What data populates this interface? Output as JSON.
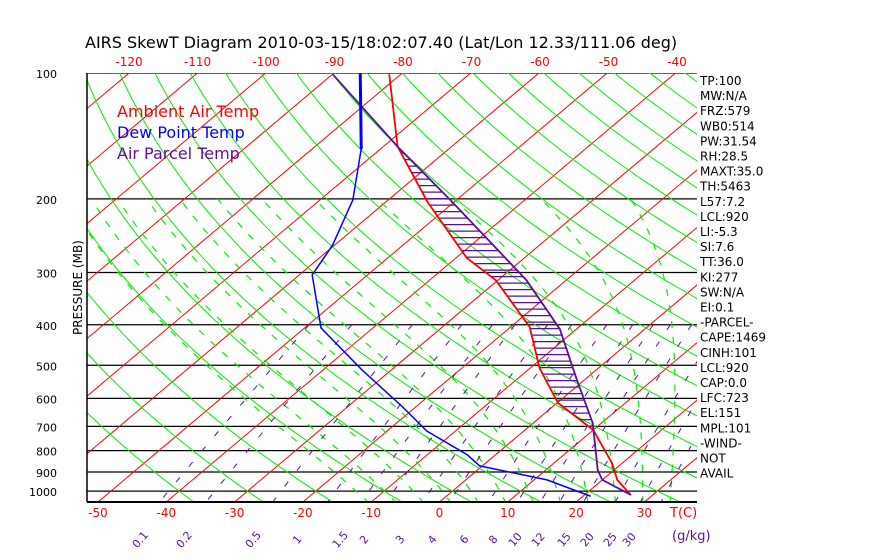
{
  "chart_data": {
    "type": "line",
    "subtype": "skew-t log-p",
    "title": "AIRS SkewT Diagram 2010-03-15/18:02:07.40 (Lat/Lon 12.33/111.06 deg)",
    "ylabel": "PRESSURE (MB)",
    "xlabel": "T(C)",
    "mixing_ratio_label": "(g/kg)",
    "ylim": [
      1060,
      100
    ],
    "pressure_ticks": [
      100,
      200,
      300,
      400,
      500,
      600,
      700,
      800,
      900,
      1000
    ],
    "top_temp_ticks": [
      -120,
      -110,
      -100,
      -90,
      -80,
      -70,
      -60,
      -50,
      -40
    ],
    "bottom_temp_ticks": [
      -50,
      -40,
      -30,
      -20,
      -10,
      0,
      10,
      20,
      30
    ],
    "mixing_ratio_ticks": [
      "0.1",
      "0.2",
      "0.5",
      "1",
      "1.5",
      "2",
      "3",
      "4",
      "6",
      "8",
      "10",
      "12",
      "15",
      "20",
      "25",
      "30"
    ],
    "legend": [
      {
        "label": "Ambient Air Temp",
        "color": "#ff0000"
      },
      {
        "label": "Dew Point Temp",
        "color": "#0000ff"
      },
      {
        "label": "Air Parcel Temp",
        "color": "#5a0f9a"
      }
    ],
    "legend_position": "top-left",
    "series": [
      {
        "name": "Ambient Air Temp",
        "color": "#ff0000",
        "pressure": [
          101,
          150,
          203,
          277,
          313,
          405,
          508,
          615,
          714,
          857,
          940,
          1020
        ],
        "temperature": [
          -81.6,
          -67.9,
          -54.0,
          -38.4,
          -30.3,
          -17.2,
          -8.6,
          0.1,
          10.0,
          18.5,
          22.2,
          26.7
        ]
      },
      {
        "name": "Dew Point Temp",
        "color": "#0000ff",
        "pressure": [
          100.5,
          152,
          201,
          258,
          304,
          407,
          513,
          629,
          718,
          819,
          870,
          940,
          1027
        ],
        "temperature": [
          -86.0,
          -72.8,
          -65.2,
          -60.3,
          -58.1,
          -47.6,
          -34.3,
          -21.9,
          -14.2,
          -4.1,
          -0.4,
          11.9,
          21.0
        ]
      },
      {
        "name": "Air Parcel Temp",
        "color": "#5a0f9a",
        "pressure": [
          101,
          150,
          203,
          313,
          410,
          542,
          687,
          890,
          940,
          1020
        ],
        "temperature": [
          -89.8,
          -67.9,
          -50.4,
          -25.8,
          -12.4,
          -1.1,
          8.7,
          17.6,
          20.0,
          26.7
        ]
      }
    ],
    "cape_shading": {
      "from_pressure": 150,
      "to_pressure": 720,
      "color": "#5a0f9a"
    },
    "colors": {
      "isotherm": "#ff0000",
      "dry_adiabat": "#00ee00",
      "moist_adiabat": "#00ee00",
      "mixing_ratio": "#5a0f9a",
      "isobar": "#000000"
    }
  },
  "indices": [
    "TP:100",
    "MW:N/A",
    "FRZ:579",
    "WB0:514",
    "PW:31.54",
    "RH:28.5",
    "MAXT:35.0",
    "TH:5463",
    "L57:7.2",
    "LCL:920",
    "LI:-5.3",
    "SI:7.6",
    "TT:36.0",
    "KI:277",
    "SW:N/A",
    "EI:0.1",
    "-PARCEL-",
    "CAPE:1469",
    "CINH:101",
    "LCL:920",
    "CAP:0.0",
    "LFC:723",
    "EL:151",
    "MPL:101",
    "-WIND-",
    "NOT",
    "AVAIL"
  ]
}
